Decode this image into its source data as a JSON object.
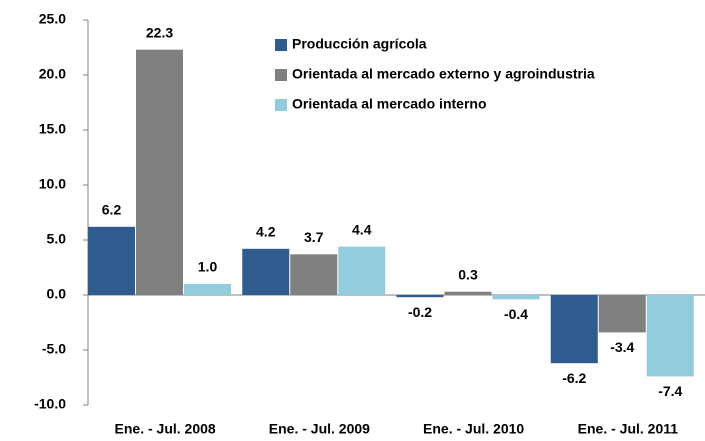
{
  "chart_data": {
    "type": "bar",
    "categories": [
      "Ene. - Jul. 2008",
      "Ene. - Jul. 2009",
      "Ene. - Jul. 2010",
      "Ene. - Jul. 2011"
    ],
    "series": [
      {
        "name": "Producción agrícola",
        "color": "#2f5b8f",
        "values": [
          6.2,
          4.2,
          -0.2,
          -6.2
        ],
        "value_labels": [
          "6.2",
          "4.2",
          "-0.2",
          "-6.2"
        ]
      },
      {
        "name": "Orientada al mercado externo y agroindustria",
        "color": "#808080",
        "values": [
          22.3,
          3.7,
          0.3,
          -3.4
        ],
        "value_labels": [
          "22.3",
          "3.7",
          "0.3",
          "-3.4"
        ]
      },
      {
        "name": "Orientada al mercado interno",
        "color": "#93cddd",
        "values": [
          1.0,
          4.4,
          -0.4,
          -7.4
        ],
        "value_labels": [
          "1.0",
          "4.4",
          "-0.4",
          "-7.4"
        ]
      }
    ],
    "ylim": [
      -10,
      25
    ],
    "yticks": [
      {
        "value": -10,
        "label": "-10.0"
      },
      {
        "value": -5,
        "label": "-5.0"
      },
      {
        "value": 0,
        "label": "0.0"
      },
      {
        "value": 5,
        "label": "5.0"
      },
      {
        "value": 10,
        "label": "10.0"
      },
      {
        "value": 15,
        "label": "15.0"
      },
      {
        "value": 20,
        "label": "20.0"
      },
      {
        "value": 25,
        "label": "25.0"
      }
    ],
    "legend": "top-right"
  }
}
